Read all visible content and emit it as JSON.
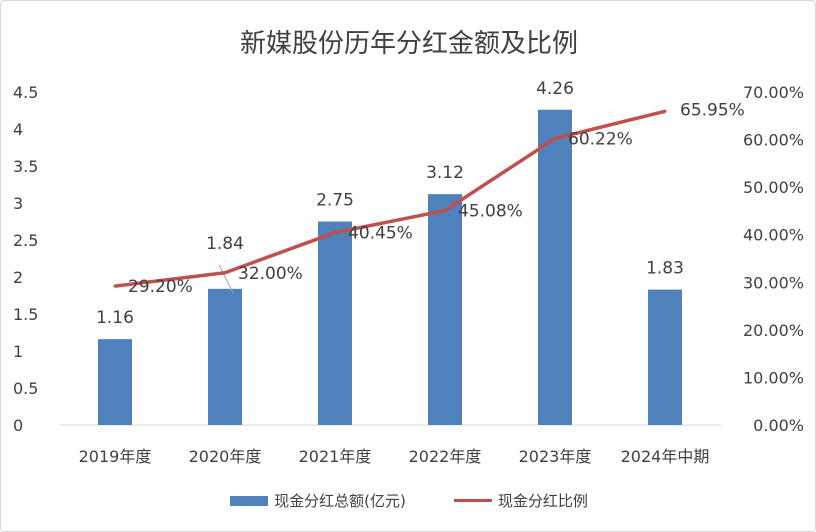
{
  "chart_data": {
    "type": "bar+line",
    "title": "新媒股份历年分红金额及比例",
    "categories": [
      "2019年度",
      "2020年度",
      "2021年度",
      "2022年度",
      "2023年度",
      "2024年中期"
    ],
    "series": [
      {
        "name": "现金分红总额(亿元)",
        "type": "bar",
        "axis": "left",
        "color": "#4f81bd",
        "values": [
          1.16,
          1.84,
          2.75,
          3.12,
          4.26,
          1.83
        ],
        "labels": [
          "1.16",
          "1.84",
          "2.75",
          "3.12",
          "4.26",
          "1.83"
        ]
      },
      {
        "name": "现金分红比例",
        "type": "line",
        "axis": "right",
        "color": "#c0504d",
        "values": [
          29.2,
          32.0,
          40.45,
          45.08,
          60.22,
          65.95
        ],
        "labels": [
          "29.20%",
          "32.00%",
          "40.45%",
          "45.08%",
          "60.22%",
          "65.95%"
        ]
      }
    ],
    "left_axis": {
      "min": 0,
      "max": 4.5,
      "ticks": [
        "0",
        "0.5",
        "1",
        "1.5",
        "2",
        "2.5",
        "3",
        "3.5",
        "4",
        "4.5"
      ]
    },
    "right_axis": {
      "min": 0,
      "max": 70,
      "ticks": [
        "0.00%",
        "10.00%",
        "20.00%",
        "30.00%",
        "40.00%",
        "50.00%",
        "60.00%",
        "70.00%"
      ]
    },
    "grid": false,
    "legend_position": "bottom"
  }
}
